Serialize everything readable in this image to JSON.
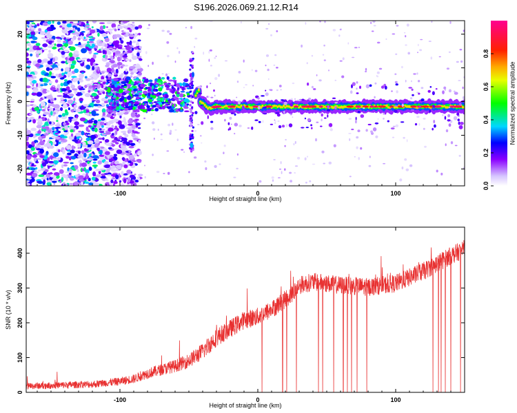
{
  "chart_data": [
    {
      "type": "heatmap",
      "title": "S196.2026.069.21.12.R14",
      "xlabel": "Height of straight line (km)",
      "ylabel": "Frequency (Hz)",
      "xlim": [
        -168,
        150
      ],
      "ylim": [
        -25,
        24
      ],
      "xticks": [
        -100,
        0,
        100
      ],
      "xtick_labels": [
        "-100",
        "0",
        "100"
      ],
      "yticks": [
        -20,
        -10,
        0,
        10,
        20
      ],
      "ytick_labels": [
        "-20",
        "-10",
        "0",
        "10",
        "20"
      ],
      "colorbar": {
        "label": "Normalized spectral amplitude",
        "range": [
          0,
          1
        ],
        "ticks": [
          0.0,
          0.2,
          0.4,
          0.6,
          0.8
        ],
        "tick_labels": [
          "0.0",
          "0.2",
          "0.4",
          "0.6",
          "0.8"
        ],
        "colormap": "rainbow (white, violet, blue, cyan, green, yellow, red, magenta)"
      },
      "features": {
        "noise_region_x": [
          -168,
          -95
        ],
        "noise_amplitude": 0.35,
        "cluster_x": [
          -110,
          -50
        ],
        "cluster_freq_range": [
          -3,
          7
        ],
        "cluster_amplitude": 0.4,
        "spike_x": -48,
        "spike_freq_range": [
          -15,
          15
        ],
        "signal_x": [
          -45,
          150
        ],
        "signal_freq_center": -1.5,
        "signal_peak_amplitude": 1.0
      }
    },
    {
      "type": "line",
      "title": "",
      "xlabel": "Height of straight line (km)",
      "ylabel": "SNR (10 * v/v)",
      "xlim": [
        -168,
        150
      ],
      "ylim": [
        0,
        475
      ],
      "xticks": [
        -100,
        0,
        100
      ],
      "xtick_labels": [
        "-100",
        "0",
        "100"
      ],
      "yticks": [
        0,
        100,
        200,
        300,
        400
      ],
      "ytick_labels": [
        "0",
        "100",
        "200",
        "300",
        "400"
      ],
      "series": [
        {
          "name": "SNR",
          "color": "#e83030",
          "x": [
            -168,
            -140,
            -120,
            -100,
            -90,
            -80,
            -70,
            -60,
            -50,
            -40,
            -30,
            -20,
            -10,
            0,
            10,
            20,
            25,
            30,
            40,
            60,
            80,
            100,
            120,
            140,
            150
          ],
          "y": [
            15,
            18,
            20,
            28,
            35,
            50,
            60,
            70,
            85,
            110,
            150,
            175,
            200,
            210,
            230,
            260,
            275,
            300,
            310,
            300,
            295,
            305,
            340,
            385,
            405
          ],
          "noise_amplitude": 30,
          "dropouts_x": [
            3,
            18,
            21,
            28,
            44,
            47,
            55,
            62,
            65,
            68,
            72,
            79,
            127,
            131,
            133,
            136,
            140,
            147
          ]
        }
      ]
    }
  ]
}
